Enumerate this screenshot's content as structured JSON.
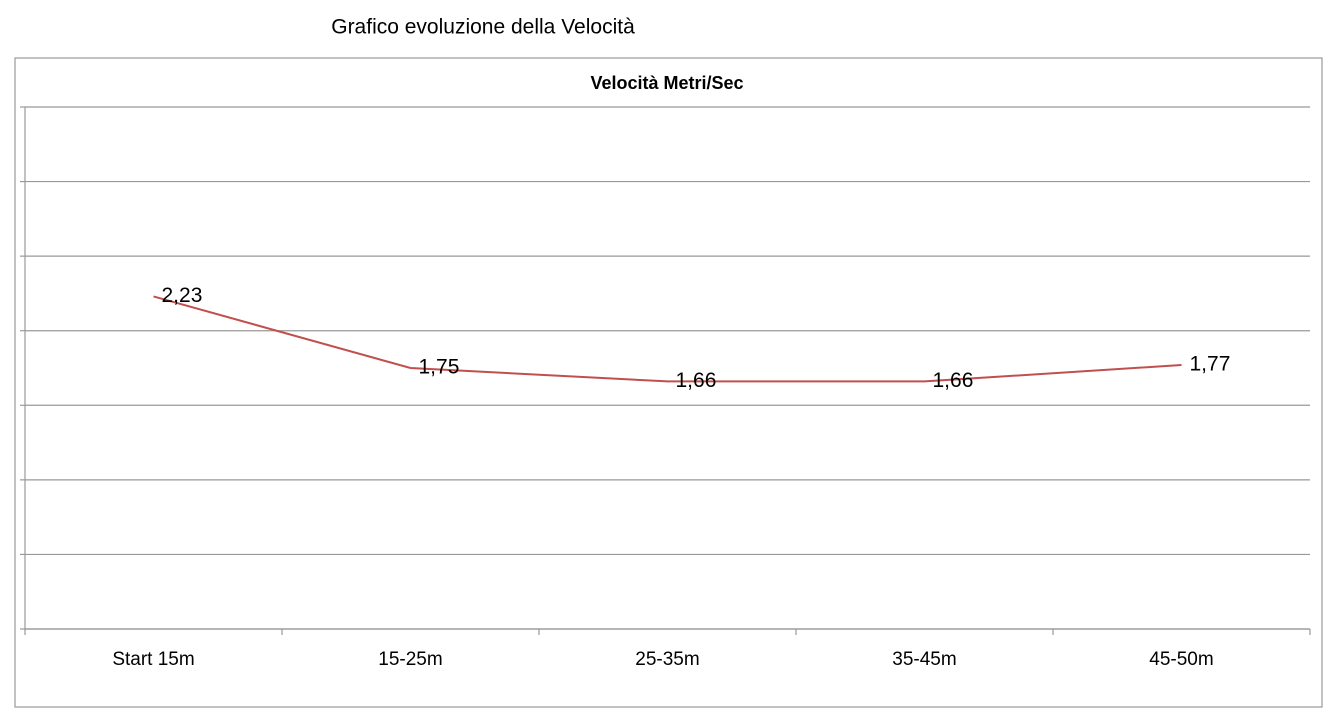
{
  "heading": "Grafico evoluzione della Velocità",
  "chart_data": {
    "type": "line",
    "title": "Velocità Metri/Sec",
    "categories": [
      "Start 15m",
      "15-25m",
      "25-35m",
      "35-45m",
      "45-50m"
    ],
    "values": [
      2.23,
      1.75,
      1.66,
      1.66,
      1.77
    ],
    "value_labels": [
      "2,23",
      "1,75",
      "1,66",
      "1,66",
      "1,77"
    ],
    "color": "#c0504d",
    "ylim": [
      0,
      3.5
    ],
    "yticks": [
      0,
      0.5,
      1,
      1.5,
      2,
      2.5,
      3,
      3.5
    ],
    "grid": true
  }
}
